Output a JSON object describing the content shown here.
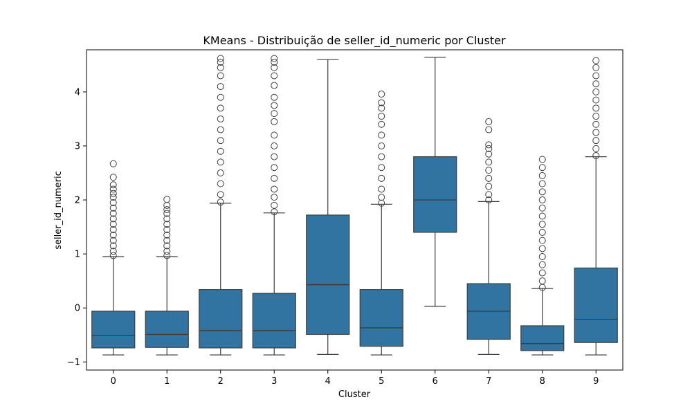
{
  "chart_data": {
    "type": "box",
    "title": "KMeans - Distribuição de seller_id_numeric por Cluster",
    "xlabel": "Cluster",
    "ylabel": "seller_id_numeric",
    "ylim": [
      -1.15,
      4.78
    ],
    "yticks": [
      -1,
      0,
      1,
      2,
      3,
      4
    ],
    "box_color": "#3274a1",
    "line_color": "#3d3d3d",
    "grid": false,
    "legend": "none",
    "categories": [
      "0",
      "1",
      "2",
      "3",
      "4",
      "5",
      "6",
      "7",
      "8",
      "9"
    ],
    "boxes": [
      {
        "cluster": "0",
        "whisker_low": -0.87,
        "q1": -0.74,
        "median": -0.51,
        "q3": -0.06,
        "whisker_high": 0.95,
        "outliers": [
          0.97,
          1.05,
          1.15,
          1.25,
          1.35,
          1.45,
          1.55,
          1.65,
          1.75,
          1.85,
          1.95,
          2.05,
          2.12,
          2.2,
          2.28,
          2.42,
          2.67
        ]
      },
      {
        "cluster": "1",
        "whisker_low": -0.87,
        "q1": -0.73,
        "median": -0.49,
        "q3": -0.06,
        "whisker_high": 0.95,
        "outliers": [
          0.97,
          1.05,
          1.15,
          1.25,
          1.35,
          1.45,
          1.55,
          1.65,
          1.75,
          1.82,
          1.9,
          2.01
        ]
      },
      {
        "cluster": "2",
        "whisker_low": -0.87,
        "q1": -0.74,
        "median": -0.42,
        "q3": 0.34,
        "whisker_high": 1.94,
        "outliers": [
          1.96,
          2.1,
          2.3,
          2.5,
          2.7,
          2.9,
          3.1,
          3.3,
          3.5,
          3.7,
          3.9,
          4.1,
          4.3,
          4.45,
          4.55,
          4.62
        ]
      },
      {
        "cluster": "3",
        "whisker_low": -0.87,
        "q1": -0.74,
        "median": -0.42,
        "q3": 0.27,
        "whisker_high": 1.76,
        "outliers": [
          1.78,
          1.9,
          2.05,
          2.2,
          2.4,
          2.6,
          2.8,
          3.0,
          3.2,
          3.45,
          3.6,
          3.75,
          3.9,
          4.12,
          4.3,
          4.45,
          4.55,
          4.62
        ]
      },
      {
        "cluster": "4",
        "whisker_low": -0.86,
        "q1": -0.49,
        "median": 0.43,
        "q3": 1.72,
        "whisker_high": 4.6,
        "outliers": []
      },
      {
        "cluster": "5",
        "whisker_low": -0.87,
        "q1": -0.71,
        "median": -0.37,
        "q3": 0.34,
        "whisker_high": 1.92,
        "outliers": [
          1.94,
          2.05,
          2.2,
          2.4,
          2.6,
          2.8,
          3.0,
          3.2,
          3.4,
          3.55,
          3.7,
          3.8,
          3.96
        ]
      },
      {
        "cluster": "6",
        "whisker_low": 0.03,
        "q1": 1.4,
        "median": 2.0,
        "q3": 2.8,
        "whisker_high": 4.64,
        "outliers": []
      },
      {
        "cluster": "7",
        "whisker_low": -0.86,
        "q1": -0.58,
        "median": -0.06,
        "q3": 0.45,
        "whisker_high": 1.97,
        "outliers": [
          2.0,
          2.1,
          2.25,
          2.4,
          2.55,
          2.7,
          2.85,
          2.95,
          3.02,
          3.3,
          3.45
        ]
      },
      {
        "cluster": "8",
        "whisker_low": -0.87,
        "q1": -0.79,
        "median": -0.66,
        "q3": -0.33,
        "whisker_high": 0.36,
        "outliers": [
          0.38,
          0.5,
          0.65,
          0.8,
          0.95,
          1.1,
          1.25,
          1.4,
          1.55,
          1.7,
          1.85,
          2.0,
          2.15,
          2.3,
          2.45,
          2.6,
          2.75
        ]
      },
      {
        "cluster": "9",
        "whisker_low": -0.87,
        "q1": -0.64,
        "median": -0.21,
        "q3": 0.74,
        "whisker_high": 2.8,
        "outliers": [
          2.82,
          2.95,
          3.1,
          3.25,
          3.4,
          3.55,
          3.7,
          3.85,
          4.0,
          4.15,
          4.3,
          4.45,
          4.58
        ]
      }
    ]
  }
}
